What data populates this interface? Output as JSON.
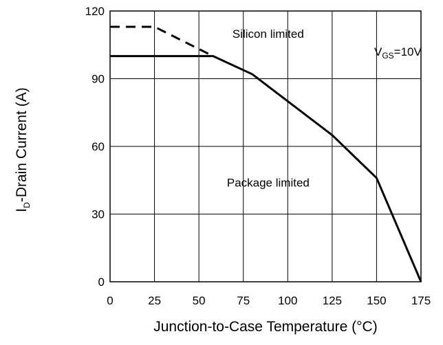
{
  "chart_data": {
    "type": "line",
    "xlabel": "Junction-to-Case Temperature (°C)",
    "ylabel_main": "I",
    "ylabel_sub": "D",
    "ylabel_rest": "-Drain Current (A)",
    "xlim": [
      0,
      175
    ],
    "ylim": [
      0,
      120
    ],
    "xticks": [
      0,
      25,
      50,
      75,
      100,
      125,
      150,
      175
    ],
    "yticks": [
      0,
      30,
      60,
      90,
      120
    ],
    "grid": true,
    "series": [
      {
        "style": "solid",
        "color": "#000000",
        "x": [
          0,
          58,
          80,
          100,
          125,
          150,
          175
        ],
        "y": [
          100,
          100,
          92,
          80,
          65,
          46,
          0
        ]
      },
      {
        "style": "dashed",
        "color": "#000000",
        "x": [
          0,
          25,
          58
        ],
        "y": [
          113,
          113,
          100
        ]
      }
    ],
    "annotations": [
      {
        "text": "Silicon limited",
        "x": 89,
        "y": 110
      },
      {
        "text": "Package limited",
        "x": 89,
        "y": 44
      }
    ],
    "condition": {
      "main": "V",
      "sub": "GS",
      "rest": "=10V",
      "x": 162,
      "y": 102
    }
  }
}
